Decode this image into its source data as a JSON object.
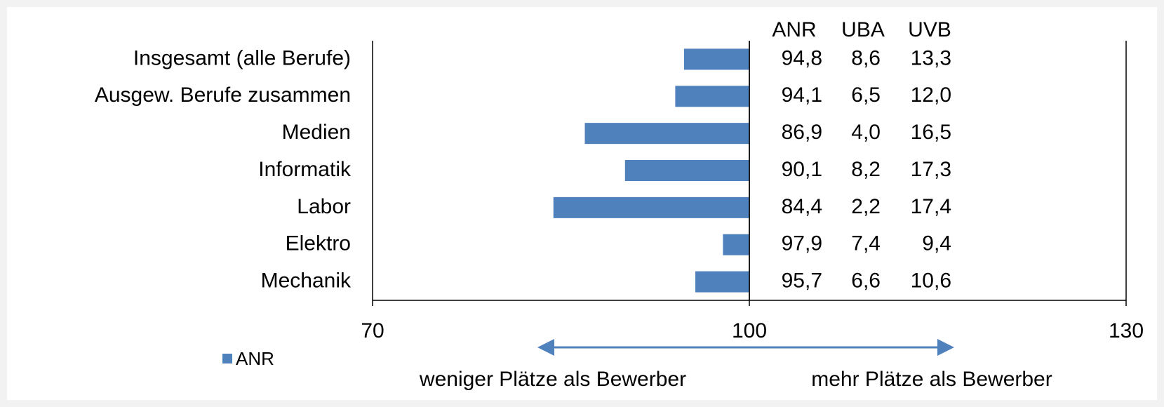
{
  "chart_data": {
    "type": "bar",
    "categories": [
      "Insgesamt (alle Berufe)",
      "Ausgew. Berufe zusammen",
      "Medien",
      "Informatik",
      "Labor",
      "Elektro",
      "Mechanik"
    ],
    "series": [
      {
        "name": "ANR",
        "color": "#4f81bd",
        "values": [
          94.8,
          94.1,
          86.9,
          90.1,
          84.4,
          97.9,
          95.7
        ],
        "value_labels": [
          "94,8",
          "94,1",
          "86,9",
          "90,1",
          "84,4",
          "97,9",
          "95,7"
        ]
      }
    ],
    "table_columns": [
      {
        "name": "UBA",
        "values": [
          8.6,
          6.5,
          4.0,
          8.2,
          2.2,
          7.4,
          6.6
        ],
        "value_labels": [
          "8,6",
          "6,5",
          "4,0",
          "8,2",
          "2,2",
          "7,4",
          "6,6"
        ]
      },
      {
        "name": "UVB",
        "values": [
          13.3,
          12.0,
          16.5,
          17.3,
          17.4,
          9.4,
          10.6
        ],
        "value_labels": [
          "13,3",
          "12,0",
          "16,5",
          "17,3",
          "17,4",
          "9,4",
          "10,6"
        ]
      }
    ],
    "xlim": [
      70,
      130
    ],
    "xticks": [
      70,
      100,
      130
    ],
    "base": 100,
    "annotations": [
      "weniger Plätze als Bewerber",
      "mehr Plätze als Bewerber"
    ],
    "legend": "bottom-left"
  }
}
